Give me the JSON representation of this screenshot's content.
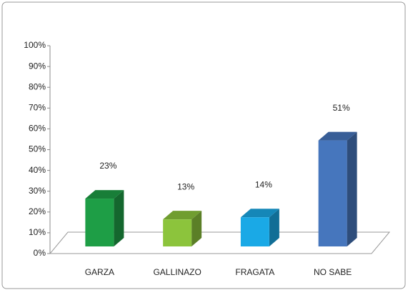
{
  "chart_data": {
    "type": "bar3d",
    "categories": [
      "GARZA",
      "GALLINAZO",
      "FRAGATA",
      "NO SABE"
    ],
    "values": [
      23,
      13,
      14,
      51
    ],
    "value_labels": [
      "23%",
      "13%",
      "14%",
      "51%"
    ],
    "colors": [
      "#1e9e46",
      "#8cc43c",
      "#1aa9e6",
      "#4676bd"
    ],
    "ylim": [
      0,
      100
    ],
    "yticks": [
      {
        "value": 0,
        "label": "0%"
      },
      {
        "value": 10,
        "label": "10%"
      },
      {
        "value": 20,
        "label": "20%"
      },
      {
        "value": 30,
        "label": "30%"
      },
      {
        "value": 40,
        "label": "40%"
      },
      {
        "value": 50,
        "label": "50%"
      },
      {
        "value": 60,
        "label": "60%"
      },
      {
        "value": 70,
        "label": "70%"
      },
      {
        "value": 80,
        "label": "80%"
      },
      {
        "value": 90,
        "label": "90%"
      },
      {
        "value": 100,
        "label": "100%"
      }
    ]
  }
}
